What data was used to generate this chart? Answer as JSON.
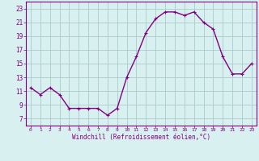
{
  "x": [
    0,
    1,
    2,
    3,
    4,
    5,
    6,
    7,
    8,
    9,
    10,
    11,
    12,
    13,
    14,
    15,
    16,
    17,
    18,
    19,
    20,
    21,
    22,
    23
  ],
  "y": [
    11.5,
    10.5,
    11.5,
    10.5,
    8.5,
    8.5,
    8.5,
    8.5,
    7.5,
    8.5,
    13.0,
    16.0,
    19.5,
    21.5,
    22.5,
    22.5,
    22.0,
    22.5,
    21.0,
    20.0,
    16.0,
    13.5,
    13.5,
    15.0
  ],
  "line_color": "#800080",
  "marker": "+",
  "marker_size": 3,
  "line_width": 1.0,
  "bg_color": "#d9f0f0",
  "grid_color": "#aacccc",
  "xlabel": "Windchill (Refroidissement éolien,°C)",
  "xlabel_color": "#800080",
  "tick_color": "#800080",
  "ylim": [
    6,
    24
  ],
  "yticks": [
    7,
    9,
    11,
    13,
    15,
    17,
    19,
    21,
    23
  ],
  "xlim": [
    -0.5,
    23.5
  ],
  "xticks": [
    0,
    1,
    2,
    3,
    4,
    5,
    6,
    7,
    8,
    9,
    10,
    11,
    12,
    13,
    14,
    15,
    16,
    17,
    18,
    19,
    20,
    21,
    22,
    23
  ],
  "xtick_labels": [
    "0",
    "1",
    "2",
    "3",
    "4",
    "5",
    "6",
    "7",
    "8",
    "9",
    "10",
    "11",
    "12",
    "13",
    "14",
    "15",
    "16",
    "17",
    "18",
    "19",
    "20",
    "21",
    "22",
    "23"
  ],
  "ytick_labels": [
    "7",
    "9",
    "11",
    "13",
    "15",
    "17",
    "19",
    "21",
    "23"
  ],
  "spine_color": "#800080",
  "xlabel_fontsize": 5.5,
  "xtick_fontsize": 4.5,
  "ytick_fontsize": 5.5,
  "markeredgewidth": 0.8
}
